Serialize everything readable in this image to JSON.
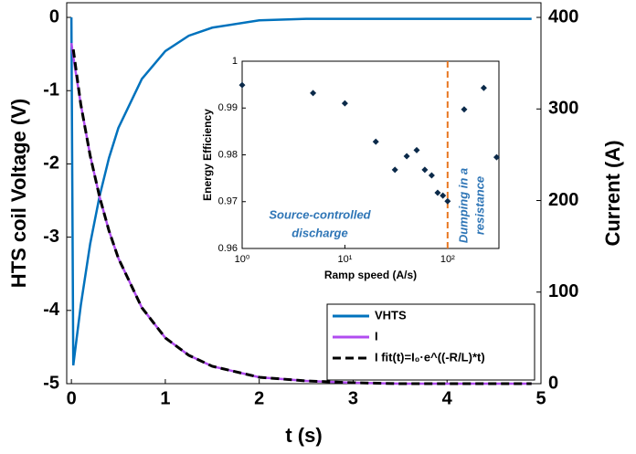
{
  "chart_data": [
    {
      "type": "line",
      "xlabel": "t (s)",
      "ylabel": "HTS coil Voltage (V)",
      "y2label": "Current (A)",
      "xlim": [
        -0.05,
        5
      ],
      "xticks": [
        0,
        1,
        2,
        3,
        4,
        5
      ],
      "ylim": [
        -5,
        0.2
      ],
      "yticks": [
        0,
        -1,
        -2,
        -3,
        -4,
        -5
      ],
      "y2lim": [
        0,
        416
      ],
      "y2ticks": [
        0,
        100,
        200,
        300,
        400
      ],
      "legend": "lower right",
      "x": [
        0,
        0.02,
        0.1,
        0.2,
        0.3,
        0.4,
        0.5,
        0.75,
        1,
        1.25,
        1.5,
        2,
        2.5,
        3,
        3.5,
        4,
        4.5,
        4.9
      ],
      "series": [
        {
          "name": "VHTS",
          "color": "#0072bd",
          "dash": false,
          "values": [
            0,
            -4.75,
            -3.93,
            -3.09,
            -2.44,
            -1.92,
            -1.51,
            -0.84,
            -0.46,
            -0.25,
            -0.14,
            -0.04,
            -0.02,
            -0.02,
            -0.02,
            -0.02,
            -0.02,
            -0.02
          ]
        },
        {
          "name": "I",
          "color": "#b14cf0",
          "dash": false,
          "axis": "y2",
          "values": [
            372,
            357,
            305,
            249,
            204,
            167,
            137,
            83,
            50,
            31,
            19,
            7,
            3,
            1,
            0,
            0,
            0,
            0
          ]
        },
        {
          "name": "I fit(t)=I₀·e^((-R/L)*t)",
          "color": "#000000",
          "dash": true,
          "axis": "y2",
          "values": [
            null,
            365,
            305,
            249,
            204,
            167,
            137,
            83,
            50,
            31,
            19,
            7,
            3,
            1,
            0,
            0,
            0,
            0
          ]
        }
      ]
    },
    {
      "type": "scatter",
      "xlabel": "Ramp speed (A/s)",
      "ylabel": "Energy Efficiency",
      "xscale": "log",
      "xlim": [
        1,
        316
      ],
      "xticks": [
        {
          "value": 1,
          "label": "10⁰"
        },
        {
          "value": 10,
          "label": "10¹"
        },
        {
          "value": 100,
          "label": "10²"
        }
      ],
      "ylim": [
        0.96,
        1
      ],
      "yticks": [
        0.96,
        0.97,
        0.98,
        0.99,
        1
      ],
      "color": "#0b2a4a",
      "x": [
        1,
        4.9,
        10,
        20,
        30.7,
        40,
        50,
        60,
        70,
        80,
        90,
        100,
        145,
        225,
        300
      ],
      "values": [
        0.9949,
        0.9932,
        0.991,
        0.9828,
        0.9768,
        0.9797,
        0.981,
        0.9768,
        0.9756,
        0.9719,
        0.9713,
        0.9701,
        0.9897,
        0.9943,
        0.9795
      ],
      "vline": 100,
      "vline_color": "#e87722",
      "annotations": [
        {
          "lines": [
            "Source-controlled",
            "discharge"
          ],
          "color": "#2e75b6"
        },
        {
          "lines": [
            "Dumping in a",
            "resistance"
          ],
          "color": "#2e75b6"
        }
      ]
    }
  ]
}
